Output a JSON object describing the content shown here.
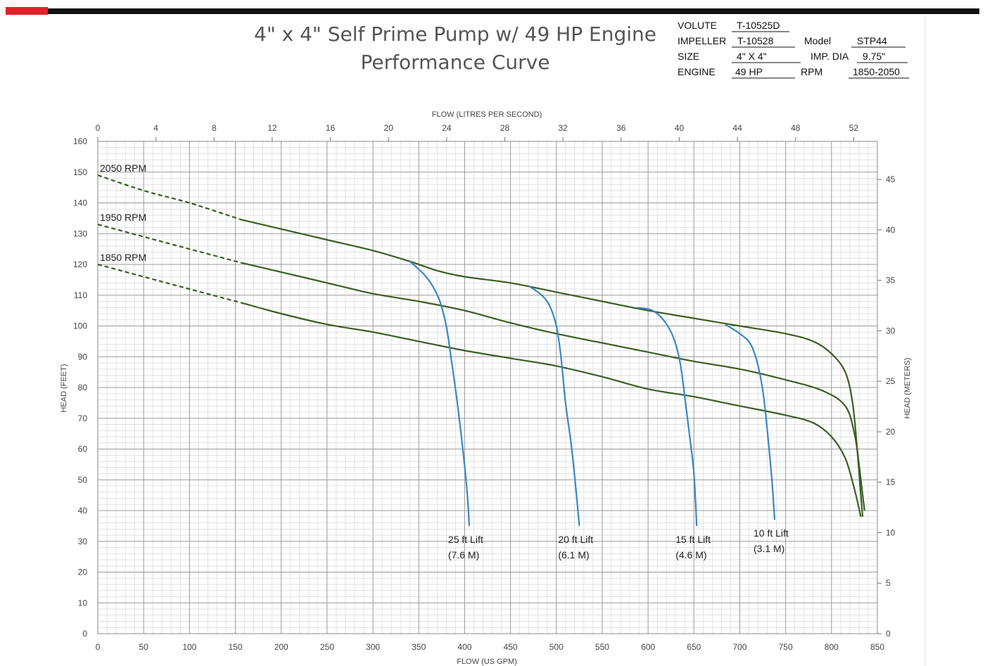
{
  "header": {
    "title_line1": "4\" x 4\" Self Prime Pump w/ 49 HP Engine",
    "title_line2": "Performance Curve"
  },
  "specs": {
    "volute_label": "VOLUTE",
    "volute_value": "T-10525D",
    "impeller_label": "IMPELLER",
    "impeller_value": "T-10528",
    "model_label": "Model",
    "model_value": "STP44",
    "size_label": "SIZE",
    "size_value": "4\" X 4\"",
    "impdia_label": "IMP. DIA",
    "impdia_value": "9.75\"",
    "engine_label": "ENGINE",
    "engine_value": "49 HP",
    "rpm_label": "RPM",
    "rpm_value": "1850-2050"
  },
  "colors": {
    "accent_red": "#e0202a",
    "header_bar": "#111111",
    "rpm_curve": "#3b5e23",
    "lift_curve": "#3a86c8",
    "grid_major": "#9a9a9a",
    "grid_minor": "#d8d8d8"
  },
  "chart_data": {
    "type": "line",
    "xlabel_bottom": "FLOW (US GPM)",
    "xlabel_top": "FLOW (LITRES PER SECOND)",
    "ylabel_left": "HEAD (FEET)",
    "ylabel_right": "HEAD (METERS)",
    "xlim": [
      0,
      850
    ],
    "ylim": [
      0,
      160
    ],
    "x_ticks": [
      0,
      50,
      100,
      150,
      200,
      250,
      300,
      350,
      400,
      450,
      500,
      550,
      600,
      650,
      700,
      750,
      800,
      850
    ],
    "y_ticks": [
      0,
      10,
      20,
      30,
      40,
      50,
      60,
      70,
      80,
      90,
      100,
      110,
      120,
      130,
      140,
      150,
      160
    ],
    "top_ticks": [
      0,
      4,
      8,
      12,
      16,
      20,
      24,
      28,
      32,
      36,
      40,
      44,
      48,
      52
    ],
    "right_ticks": [
      0,
      5,
      10,
      15,
      20,
      25,
      30,
      35,
      40,
      45
    ],
    "grid": true,
    "rpm_series": [
      {
        "name": "2050 RPM",
        "dashed": [
          [
            0,
            149
          ],
          [
            50,
            144
          ],
          [
            100,
            140
          ],
          [
            157,
            134.5
          ]
        ],
        "solid": [
          [
            157,
            134.5
          ],
          [
            200,
            131.5
          ],
          [
            250,
            128
          ],
          [
            300,
            124.5
          ],
          [
            340,
            121
          ],
          [
            370,
            118
          ],
          [
            400,
            116
          ],
          [
            450,
            114
          ],
          [
            500,
            111
          ],
          [
            550,
            108
          ],
          [
            600,
            105
          ],
          [
            650,
            102.5
          ],
          [
            700,
            100
          ],
          [
            750,
            97.5
          ],
          [
            780,
            95
          ],
          [
            800,
            91
          ],
          [
            815,
            85
          ],
          [
            823,
            75
          ],
          [
            828,
            60
          ],
          [
            832,
            45
          ],
          [
            834,
            38
          ]
        ]
      },
      {
        "name": "1950 RPM",
        "dashed": [
          [
            0,
            133
          ],
          [
            50,
            129
          ],
          [
            100,
            125
          ],
          [
            157,
            120.5
          ]
        ],
        "solid": [
          [
            157,
            120.5
          ],
          [
            200,
            117.5
          ],
          [
            250,
            114
          ],
          [
            300,
            110.5
          ],
          [
            350,
            108
          ],
          [
            400,
            105
          ],
          [
            450,
            101
          ],
          [
            500,
            97.5
          ],
          [
            550,
            94.5
          ],
          [
            600,
            91.5
          ],
          [
            650,
            88.5
          ],
          [
            700,
            86
          ],
          [
            750,
            82.5
          ],
          [
            790,
            79
          ],
          [
            815,
            74
          ],
          [
            825,
            65
          ],
          [
            830,
            55
          ],
          [
            834,
            45
          ],
          [
            836,
            40
          ]
        ]
      },
      {
        "name": "1850 RPM",
        "dashed": [
          [
            0,
            120
          ],
          [
            50,
            116
          ],
          [
            100,
            112
          ],
          [
            157,
            107.5
          ]
        ],
        "solid": [
          [
            157,
            107.5
          ],
          [
            200,
            104
          ],
          [
            250,
            100.5
          ],
          [
            300,
            98
          ],
          [
            350,
            95
          ],
          [
            400,
            92
          ],
          [
            450,
            89.5
          ],
          [
            500,
            87
          ],
          [
            550,
            83.5
          ],
          [
            600,
            79.5
          ],
          [
            650,
            77
          ],
          [
            700,
            74
          ],
          [
            750,
            71
          ],
          [
            780,
            68.5
          ],
          [
            800,
            64
          ],
          [
            815,
            57
          ],
          [
            825,
            47
          ],
          [
            832,
            38
          ]
        ]
      }
    ],
    "lift_series": [
      {
        "name": "25 ft Lift",
        "label_line1": "25 ft Lift",
        "label_line2": "(7.6 M)",
        "points": [
          [
            340,
            121
          ],
          [
            355,
            117
          ],
          [
            365,
            113
          ],
          [
            373,
            108
          ],
          [
            380,
            100
          ],
          [
            385,
            90
          ],
          [
            392,
            75
          ],
          [
            398,
            60
          ],
          [
            403,
            45
          ],
          [
            405,
            35
          ]
        ]
      },
      {
        "name": "20 ft Lift",
        "label_line1": "20 ft Lift",
        "label_line2": "(6.1 M)",
        "points": [
          [
            470,
            113
          ],
          [
            482,
            110.5
          ],
          [
            492,
            107
          ],
          [
            500,
            100
          ],
          [
            505,
            90
          ],
          [
            510,
            75
          ],
          [
            516,
            62
          ],
          [
            521,
            48
          ],
          [
            525,
            35
          ]
        ]
      },
      {
        "name": "15 ft Lift",
        "label_line1": "15 ft Lift",
        "label_line2": "(4.6 M)",
        "points": [
          [
            588,
            106
          ],
          [
            605,
            105
          ],
          [
            618,
            101.5
          ],
          [
            628,
            96
          ],
          [
            635,
            88
          ],
          [
            640,
            77
          ],
          [
            645,
            65
          ],
          [
            650,
            52
          ],
          [
            653,
            35
          ]
        ]
      },
      {
        "name": "10 ft Lift",
        "label_line1": "10 ft Lift",
        "label_line2": "(3.1 M)",
        "points": [
          [
            684,
            100.5
          ],
          [
            700,
            97.5
          ],
          [
            712,
            94
          ],
          [
            720,
            87
          ],
          [
            726,
            77
          ],
          [
            731,
            63
          ],
          [
            735,
            50
          ],
          [
            738,
            37
          ]
        ]
      }
    ]
  }
}
